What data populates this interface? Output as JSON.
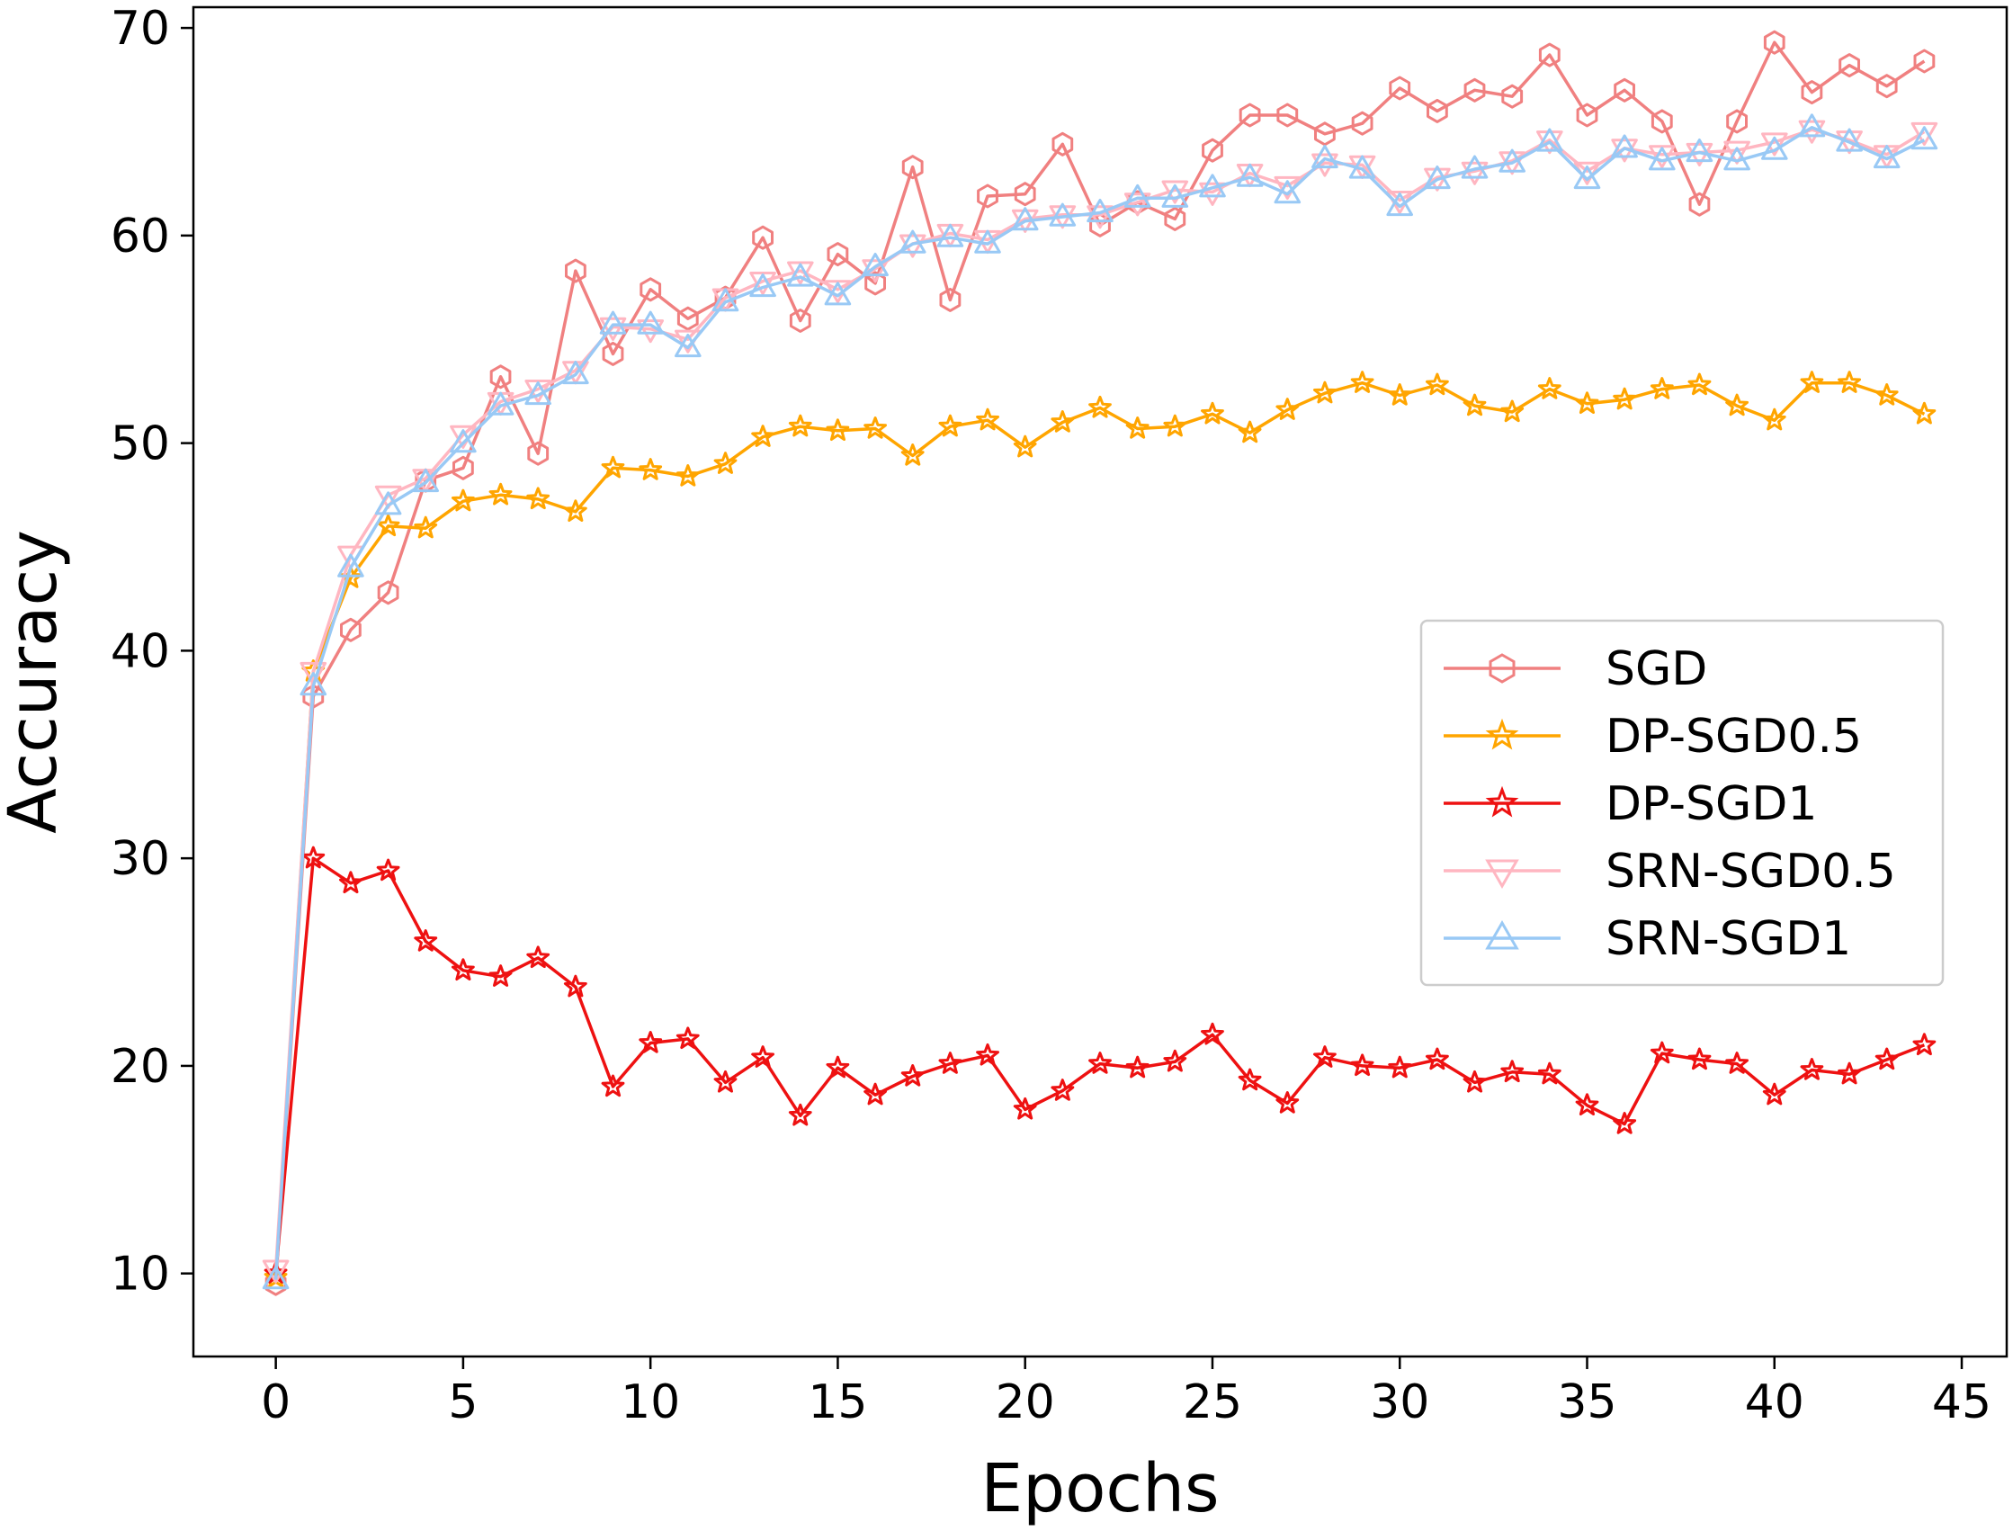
{
  "chart_data": {
    "type": "line",
    "title": "",
    "xlabel": "Epochs",
    "ylabel": "Accuracy",
    "xlim": [
      -2.2,
      46.2
    ],
    "ylim": [
      6,
      71
    ],
    "xticks": [
      0,
      5,
      10,
      15,
      20,
      25,
      30,
      35,
      40,
      45
    ],
    "yticks": [
      10,
      20,
      30,
      40,
      50,
      60,
      70
    ],
    "grid": false,
    "legend_position": "center-right",
    "x": [
      0,
      1,
      2,
      3,
      4,
      5,
      6,
      7,
      8,
      9,
      10,
      11,
      12,
      13,
      14,
      15,
      16,
      17,
      18,
      19,
      20,
      21,
      22,
      23,
      24,
      25,
      26,
      27,
      28,
      29,
      30,
      31,
      32,
      33,
      34,
      35,
      36,
      37,
      38,
      39,
      40,
      41,
      42,
      43,
      44
    ],
    "series": [
      {
        "name": "SGD",
        "color": "#f08080",
        "marker": "hexagon",
        "values": [
          9.5,
          37.8,
          41.0,
          42.8,
          48.2,
          48.8,
          53.2,
          49.5,
          58.3,
          54.3,
          57.4,
          56.0,
          57.0,
          59.9,
          55.9,
          59.1,
          57.7,
          63.3,
          56.9,
          61.9,
          62.0,
          64.4,
          60.5,
          61.6,
          60.8,
          64.1,
          65.8,
          65.8,
          64.9,
          65.4,
          67.1,
          66.0,
          67.0,
          66.7,
          68.7,
          65.8,
          67.0,
          65.5,
          61.5,
          65.5,
          69.3,
          66.9,
          68.2,
          67.2,
          68.4
        ]
      },
      {
        "name": "DP-SGD0.5",
        "color": "#ffa500",
        "marker": "star",
        "values": [
          9.8,
          39.0,
          43.5,
          46.0,
          45.9,
          47.2,
          47.5,
          47.3,
          46.7,
          48.8,
          48.7,
          48.4,
          49.0,
          50.3,
          50.8,
          50.6,
          50.7,
          49.4,
          50.8,
          51.1,
          49.8,
          51.0,
          51.7,
          50.7,
          50.8,
          51.4,
          50.5,
          51.6,
          52.4,
          52.9,
          52.3,
          52.8,
          51.8,
          51.5,
          52.6,
          51.9,
          52.1,
          52.6,
          52.8,
          51.8,
          51.1,
          52.9,
          52.9,
          52.3,
          51.4
        ]
      },
      {
        "name": "DP-SGD1",
        "color": "#ee1111",
        "marker": "star",
        "values": [
          10.0,
          30.0,
          28.8,
          29.4,
          26.0,
          24.6,
          24.3,
          25.2,
          23.8,
          19.0,
          21.1,
          21.3,
          19.2,
          20.4,
          17.6,
          19.9,
          18.6,
          19.5,
          20.1,
          20.5,
          17.9,
          18.8,
          20.1,
          19.9,
          20.2,
          21.5,
          19.3,
          18.2,
          20.4,
          20.0,
          19.9,
          20.3,
          19.2,
          19.7,
          19.6,
          18.1,
          17.2,
          20.6,
          20.3,
          20.1,
          18.6,
          19.8,
          19.6,
          20.3,
          21.0
        ]
      },
      {
        "name": "SRN-SGD0.5",
        "color": "#ffb6c1",
        "marker": "triangle-down",
        "values": [
          10.2,
          39.0,
          44.6,
          47.5,
          48.3,
          50.4,
          52.0,
          52.6,
          53.5,
          55.6,
          55.5,
          55.0,
          57.0,
          57.8,
          58.3,
          57.4,
          58.4,
          59.6,
          60.1,
          59.8,
          60.8,
          61.0,
          61.0,
          61.6,
          62.2,
          62.1,
          63.0,
          62.4,
          63.5,
          63.4,
          61.7,
          62.8,
          63.1,
          63.6,
          64.6,
          63.1,
          64.2,
          63.9,
          64.0,
          64.1,
          64.5,
          65.1,
          64.6,
          63.9,
          65.0
        ]
      },
      {
        "name": "SRN-SGD1",
        "color": "#99c9f5",
        "marker": "triangle-up",
        "values": [
          9.7,
          38.3,
          44.0,
          47.0,
          48.1,
          50.0,
          51.8,
          52.3,
          53.3,
          55.7,
          55.7,
          54.6,
          56.8,
          57.5,
          58.0,
          57.1,
          58.5,
          59.6,
          59.9,
          59.6,
          60.7,
          60.9,
          61.1,
          61.8,
          61.8,
          62.3,
          62.8,
          62.0,
          63.7,
          63.2,
          61.4,
          62.7,
          63.2,
          63.5,
          64.5,
          62.7,
          64.2,
          63.6,
          64.0,
          63.6,
          64.1,
          65.2,
          64.5,
          63.7,
          64.6
        ]
      }
    ]
  }
}
